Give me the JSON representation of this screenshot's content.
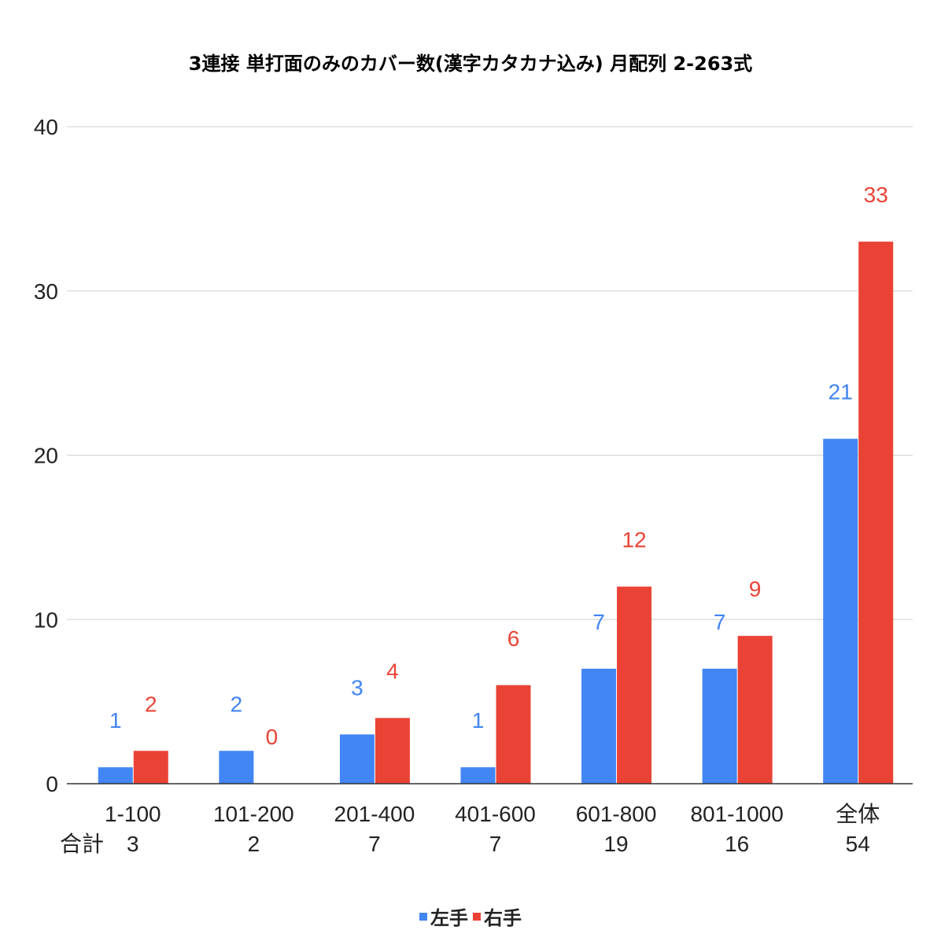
{
  "chart_data": {
    "type": "bar",
    "title": "3連接 単打面のみのカバー数(漢字カタカナ込み) 月配列 2-263式",
    "xlabel": "",
    "ylabel": "",
    "ylim": [
      0,
      40
    ],
    "yticks": [
      0,
      10,
      20,
      30,
      40
    ],
    "grid": true,
    "legend_position": "bottom",
    "categories": [
      "1-100",
      "101-200",
      "201-400",
      "401-600",
      "601-800",
      "801-1000",
      "全体"
    ],
    "row_header": "合計",
    "totals": [
      "3",
      "2",
      "7",
      "7",
      "19",
      "16",
      "54"
    ],
    "series": [
      {
        "name": "左手",
        "color": "#4285f4",
        "values": [
          1,
          2,
          3,
          1,
          7,
          7,
          21
        ]
      },
      {
        "name": "右手",
        "color": "#ea4335",
        "values": [
          2,
          0,
          4,
          6,
          12,
          9,
          33
        ]
      }
    ]
  }
}
